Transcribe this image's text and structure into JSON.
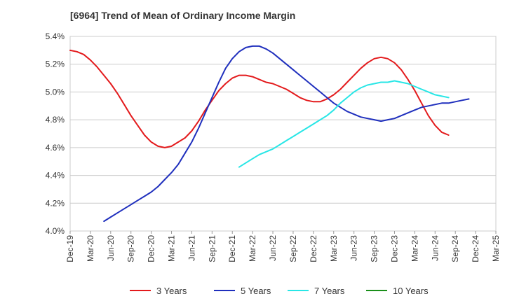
{
  "chart_data": {
    "type": "line",
    "title": "[6964]  Trend of Mean of Ordinary Income Margin",
    "xlabel": "",
    "ylabel": "",
    "x_ticks": [
      "Dec-19",
      "Mar-20",
      "Jun-20",
      "Sep-20",
      "Dec-20",
      "Mar-21",
      "Jun-21",
      "Sep-21",
      "Dec-21",
      "Mar-22",
      "Jun-22",
      "Sep-22",
      "Dec-22",
      "Mar-23",
      "Jun-23",
      "Sep-23",
      "Dec-23",
      "Mar-24",
      "Jun-24",
      "Sep-24",
      "Dec-24",
      "Mar-25"
    ],
    "ylim": [
      4.0,
      5.4
    ],
    "y_ticks": [
      "4.0%",
      "4.2%",
      "4.4%",
      "4.6%",
      "4.8%",
      "5.0%",
      "5.2%",
      "5.4%"
    ],
    "grid": "horizontal",
    "legend_position": "bottom",
    "series": [
      {
        "name": "3 Years",
        "color": "#e31a1c",
        "start_index": 0,
        "values": [
          5.3,
          5.29,
          5.27,
          5.23,
          5.18,
          5.12,
          5.06,
          4.99,
          4.91,
          4.83,
          4.76,
          4.69,
          4.64,
          4.61,
          4.6,
          4.61,
          4.64,
          4.67,
          4.72,
          4.79,
          4.87,
          4.94,
          5.01,
          5.06,
          5.1,
          5.12,
          5.12,
          5.11,
          5.09,
          5.07,
          5.06,
          5.04,
          5.02,
          4.99,
          4.96,
          4.94,
          4.93,
          4.93,
          4.95,
          4.98,
          5.02,
          5.07,
          5.12,
          5.17,
          5.21,
          5.24,
          5.25,
          5.24,
          5.21,
          5.16,
          5.09,
          5.01,
          4.92,
          4.83,
          4.76,
          4.71,
          4.69
        ]
      },
      {
        "name": "5 Years",
        "color": "#1f2fbd",
        "start_index": 5,
        "values": [
          4.07,
          4.1,
          4.13,
          4.16,
          4.19,
          4.22,
          4.25,
          4.28,
          4.32,
          4.37,
          4.42,
          4.48,
          4.56,
          4.64,
          4.74,
          4.85,
          4.96,
          5.07,
          5.17,
          5.24,
          5.29,
          5.32,
          5.33,
          5.33,
          5.31,
          5.28,
          5.24,
          5.2,
          5.16,
          5.12,
          5.08,
          5.04,
          5,
          4.96,
          4.92,
          4.89,
          4.86,
          4.84,
          4.82,
          4.81,
          4.8,
          4.79,
          4.8,
          4.81,
          4.83,
          4.85,
          4.87,
          4.89,
          4.9,
          4.91,
          4.92,
          4.92,
          4.93,
          4.94,
          4.95
        ]
      },
      {
        "name": "7 Years",
        "color": "#28e6e6",
        "start_index": 25,
        "values": [
          4.46,
          4.49,
          4.52,
          4.55,
          4.57,
          4.59,
          4.62,
          4.65,
          4.68,
          4.71,
          4.74,
          4.77,
          4.8,
          4.83,
          4.87,
          4.92,
          4.96,
          5,
          5.03,
          5.05,
          5.06,
          5.07,
          5.07,
          5.08,
          5.07,
          5.06,
          5.04,
          5.02,
          5,
          4.98,
          4.97,
          4.96
        ]
      },
      {
        "name": "10 Years",
        "color": "#1a8f1a",
        "start_index": 0,
        "values": []
      }
    ]
  }
}
